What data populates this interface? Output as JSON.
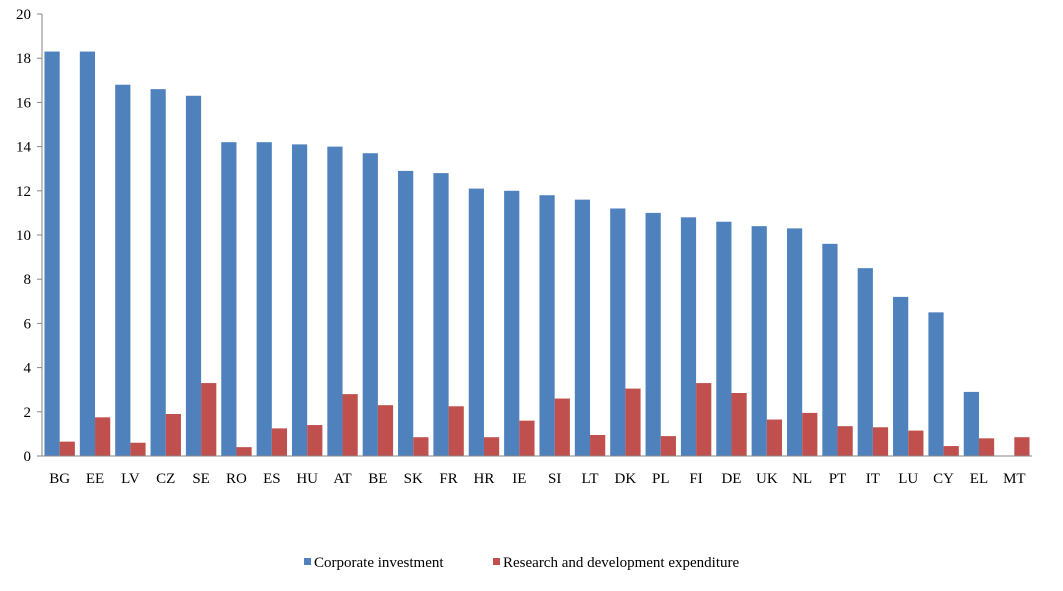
{
  "chart_data": {
    "type": "bar",
    "title": "",
    "xlabel": "",
    "ylabel": "",
    "ylim": [
      0,
      20
    ],
    "yticks": [
      0,
      2,
      4,
      6,
      8,
      10,
      12,
      14,
      16,
      18,
      20
    ],
    "grid": false,
    "legend_position": "bottom",
    "categories": [
      "BG",
      "EE",
      "LV",
      "CZ",
      "SE",
      "RO",
      "ES",
      "HU",
      "AT",
      "BE",
      "SK",
      "FR",
      "HR",
      "IE",
      "SI",
      "LT",
      "DK",
      "PL",
      "FI",
      "DE",
      "UK",
      "NL",
      "PT",
      "IT",
      "LU",
      "CY",
      "EL",
      "MT"
    ],
    "series": [
      {
        "name": "Corporate investment",
        "color": "#4F81BD",
        "values": [
          18.3,
          18.3,
          16.8,
          16.6,
          16.3,
          14.2,
          14.2,
          14.1,
          14.0,
          13.7,
          12.9,
          12.8,
          12.1,
          12.0,
          11.8,
          11.6,
          11.2,
          11.0,
          10.8,
          10.6,
          10.4,
          10.3,
          9.6,
          8.5,
          7.2,
          6.5,
          2.9,
          0.0
        ]
      },
      {
        "name": "Research and development expenditure",
        "color": "#C0504D",
        "values": [
          0.65,
          1.75,
          0.6,
          1.9,
          3.3,
          0.4,
          1.25,
          1.4,
          2.8,
          2.3,
          0.85,
          2.25,
          0.85,
          1.6,
          2.6,
          0.95,
          3.05,
          0.9,
          3.3,
          2.85,
          1.65,
          1.95,
          1.35,
          1.3,
          1.15,
          0.45,
          0.8,
          0.85
        ]
      }
    ]
  }
}
